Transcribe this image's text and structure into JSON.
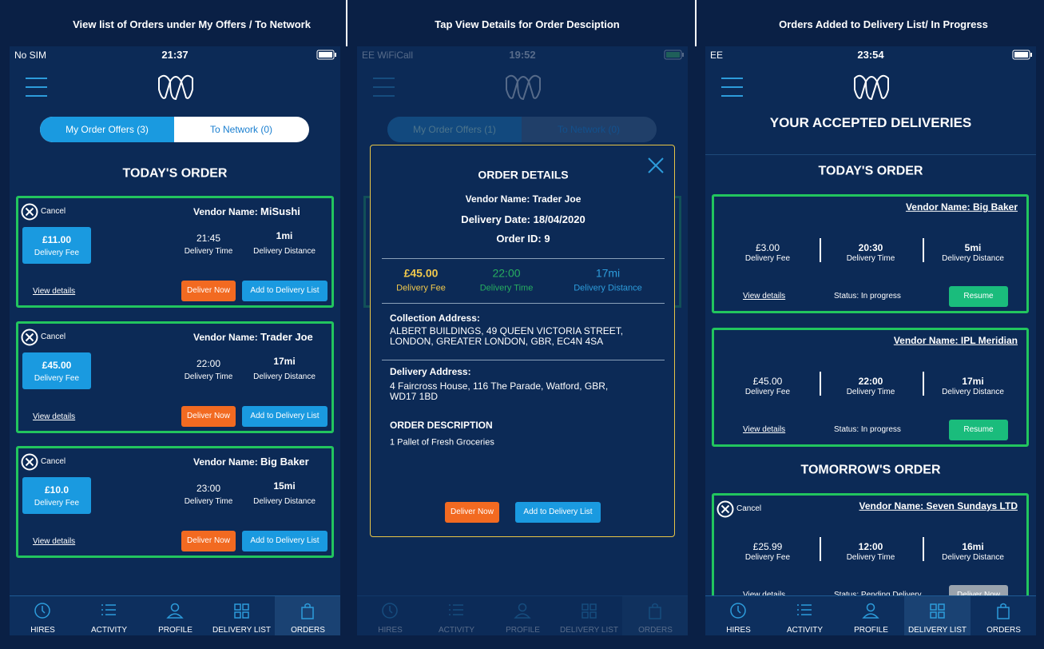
{
  "captions": [
    "View list of Orders under My Offers / To Network",
    "Tap View Details for Order Desciption",
    "Orders Added to Delivery List/ In Progress"
  ],
  "labels": {
    "cancel": "Cancel",
    "vendor": "Vendor Name:",
    "fee": "Delivery Fee",
    "time": "Delivery Time",
    "distance": "Delivery Distance",
    "view": "View details",
    "deliver": "Deliver Now",
    "add": "Add to Delivery List",
    "resume": "Resume"
  },
  "nav": [
    "HIRES",
    "ACTIVITY",
    "PROFILE",
    "DELIVERY LIST",
    "ORDERS"
  ],
  "screen1": {
    "carrier": "No SIM",
    "time": "21:37",
    "tabs": [
      "My Order Offers (3)",
      "To Network (0)"
    ],
    "section": "TODAY'S ORDER",
    "orders": [
      {
        "vendor": "MiSushi",
        "fee": "£11.00",
        "time": "21:45",
        "distance": "1mi"
      },
      {
        "vendor": "Trader Joe",
        "fee": "£45.00",
        "time": "22:00",
        "distance": "17mi"
      },
      {
        "vendor": "Big Baker",
        "fee": "£10.0",
        "time": "23:00",
        "distance": "15mi"
      }
    ]
  },
  "screen2": {
    "carrier": "EE WiFiCall",
    "time": "19:52",
    "tabs": [
      "My Order Offers (1)",
      "To Network (0)"
    ],
    "modal": {
      "title": "ORDER DETAILS",
      "vendor": "Trader Joe",
      "date": "Delivery Date: 18/04/2020",
      "order_id": "Order ID: 9",
      "fee": "£45.00",
      "time": "22:00",
      "distance": "17mi",
      "collection_label": "Collection Address:",
      "collection": "ALBERT BUILDINGS, 49 QUEEN VICTORIA STREET, LONDON, GREATER LONDON, GBR, EC4N 4SA",
      "delivery_label": "Delivery Address:",
      "delivery": "4 Faircross House, 116 The Parade, Watford, GBR, WD17 1BD",
      "description_label": "ORDER DESCRIPTION",
      "description": "1 Pallet of Fresh Groceries"
    }
  },
  "screen3": {
    "carrier": "EE",
    "time": "23:54",
    "title": "YOUR ACCEPTED DELIVERIES",
    "today": "TODAY'S ORDER",
    "tomorrow": "TOMORROW'S ORDER",
    "today_orders": [
      {
        "vendor": "Big Baker",
        "fee": "£3.00",
        "time": "20:30",
        "distance": "5mi",
        "status": "Status: In progress"
      },
      {
        "vendor": "IPL Meridian",
        "fee": "£45.00",
        "time": "22:00",
        "distance": "17mi",
        "status": "Status: In progress"
      }
    ],
    "tomorrow_orders": [
      {
        "vendor": "Seven Sundays LTD",
        "fee": "£25.99",
        "time": "12:00",
        "distance": "16mi",
        "status": "Status: Pending Delivery"
      }
    ]
  }
}
